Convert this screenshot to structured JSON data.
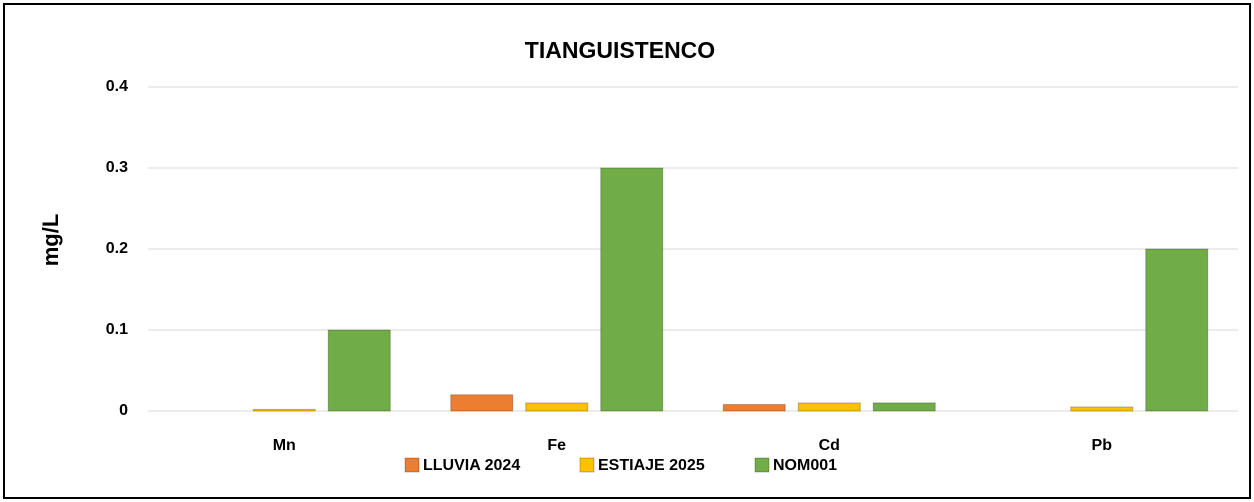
{
  "chart_data": {
    "type": "bar",
    "title": "TIANGUISTENCO",
    "y_label": "mg/L",
    "categories": [
      "Mn",
      "Fe",
      "Cd",
      "Pb"
    ],
    "series": [
      {
        "name": "LLUVIA 2024",
        "color": "#ed7d31",
        "values": [
          0,
          0.02,
          0.008,
          0
        ]
      },
      {
        "name": "ESTIAJE 2025",
        "color": "#ffc000",
        "values": [
          0.002,
          0.01,
          0.01,
          0.005
        ]
      },
      {
        "name": "NOM001",
        "color": "#70ad47",
        "values": [
          0.1,
          0.3,
          0.01,
          0.2
        ]
      }
    ],
    "ylim": [
      0,
      0.4
    ],
    "yticks": [
      0,
      0.1,
      0.2,
      0.3,
      0.4
    ],
    "grid": true,
    "legend": "bottom"
  }
}
